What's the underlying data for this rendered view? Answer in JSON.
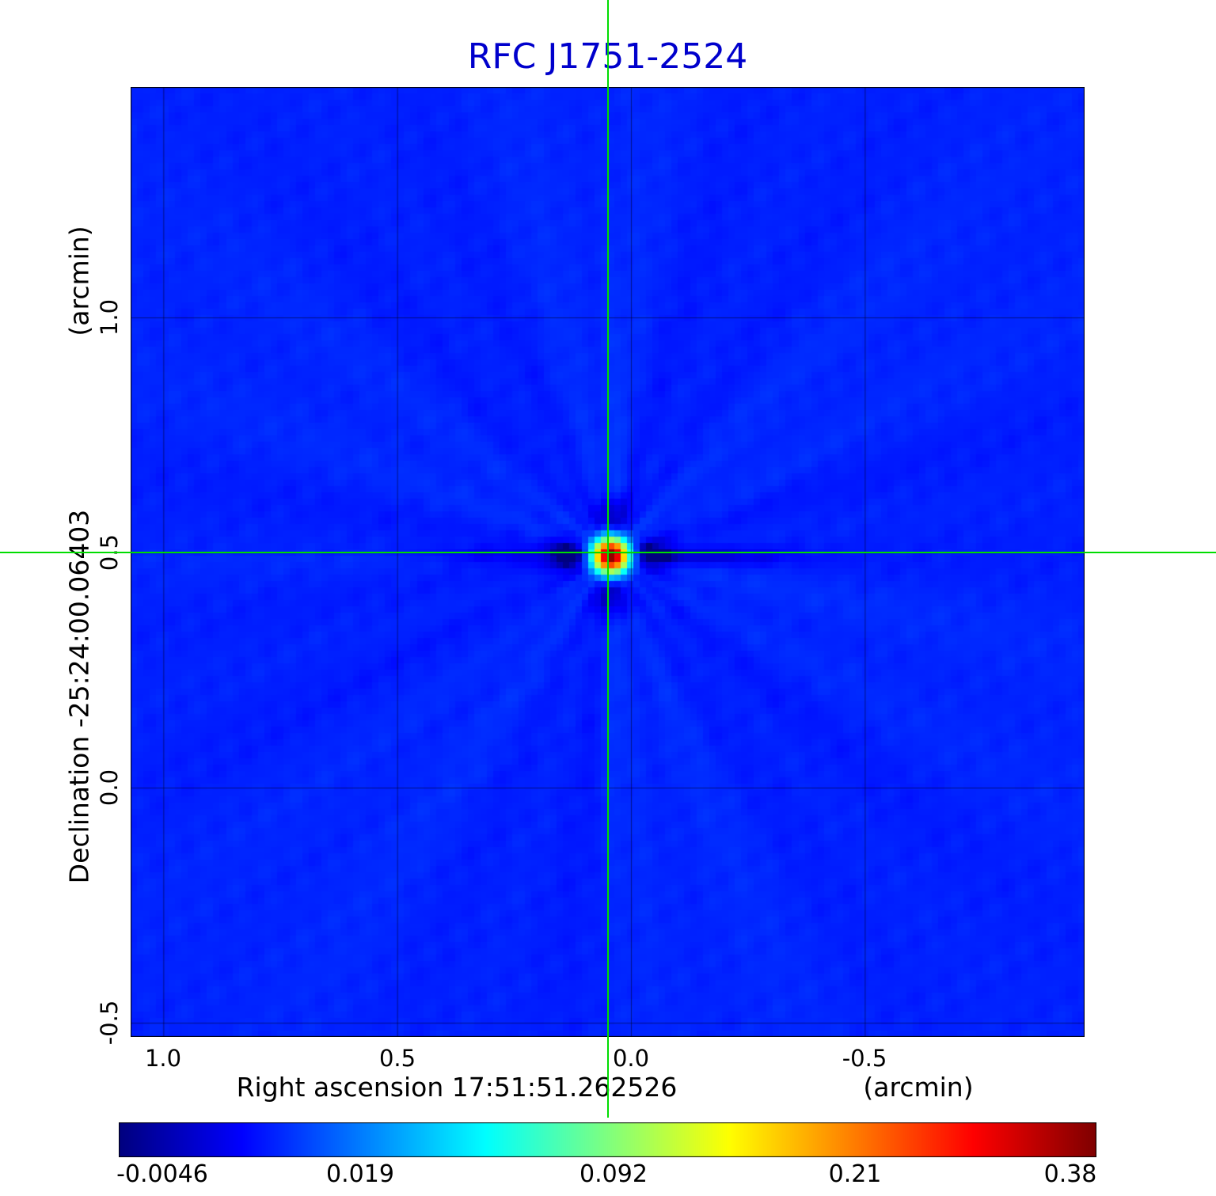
{
  "title": "RFC J1751-2524",
  "title_color": "#0000cc",
  "axes": {
    "x_label": "Right ascension  17:51:51.262526",
    "x_unit": "(arcmin)",
    "y_label": "Declination  -25:24:00.06403",
    "y_unit": "(arcmin)",
    "x_ticks": [
      "1.0",
      "0.5",
      "0.0",
      "-0.5"
    ],
    "y_ticks": [
      "1.0",
      "0.5",
      "0.0",
      "-0.5"
    ]
  },
  "colorbar": {
    "labels": [
      "-0.0046",
      "0.019",
      "0.092",
      "0.21",
      "0.38"
    ]
  },
  "chart_data": {
    "type": "heatmap",
    "title": "RFC J1751-2524",
    "xlabel": "Right ascension 17:51:51.262526 (arcmin)",
    "ylabel": "Declination -25:24:00.06403 (arcmin)",
    "xlim": [
      1.07,
      -0.97
    ],
    "ylim": [
      -0.53,
      1.49
    ],
    "x_ticks": [
      1.0,
      0.5,
      0.0,
      -0.5
    ],
    "y_ticks": [
      1.0,
      0.5,
      0.0,
      -0.5
    ],
    "grid": true,
    "legend": "colorbar-bottom",
    "colormap": "jet",
    "scale": {
      "type": "sqrt",
      "vmin": -0.0046,
      "vmax": 0.38,
      "colorbar_ticks": [
        -0.0046,
        0.019,
        0.092,
        0.21,
        0.38
      ]
    },
    "background_level": 0.005,
    "source": {
      "ra_offset_arcmin": 0.05,
      "dec_offset_arcmin": 0.5,
      "peak": 0.38
    },
    "crosshair_color": "#00dd00"
  }
}
